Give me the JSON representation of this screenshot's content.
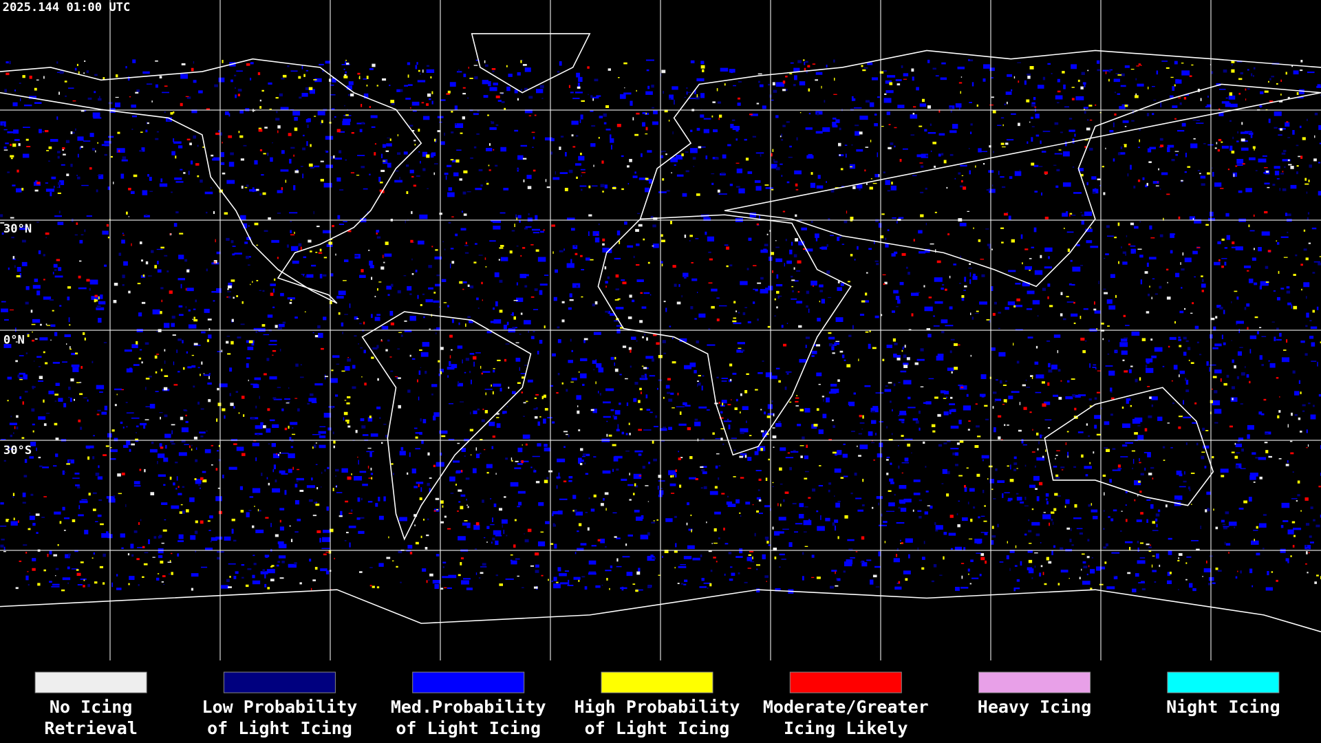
{
  "header": {
    "timestamp": "2025.144 01:00 UTC"
  },
  "map": {
    "latitude_labels": [
      "30°N",
      "0°N",
      "30°S"
    ]
  },
  "legend": {
    "items": [
      {
        "label_lines": [
          "No Icing",
          "Retrieval"
        ],
        "color": "#eeeeee"
      },
      {
        "label_lines": [
          "Low Probability",
          "of Light Icing"
        ],
        "color": "#00007f"
      },
      {
        "label_lines": [
          "Med.Probability",
          "of Light Icing"
        ],
        "color": "#0000ff"
      },
      {
        "label_lines": [
          "High Probability",
          "of Light Icing"
        ],
        "color": "#ffff00"
      },
      {
        "label_lines": [
          "Moderate/Greater",
          "Icing Likely"
        ],
        "color": "#ff0000"
      },
      {
        "label_lines": [
          "Heavy Icing"
        ],
        "color": "#e8a0e8"
      },
      {
        "label_lines": [
          "Night Icing"
        ],
        "color": "#00ffff"
      }
    ]
  }
}
